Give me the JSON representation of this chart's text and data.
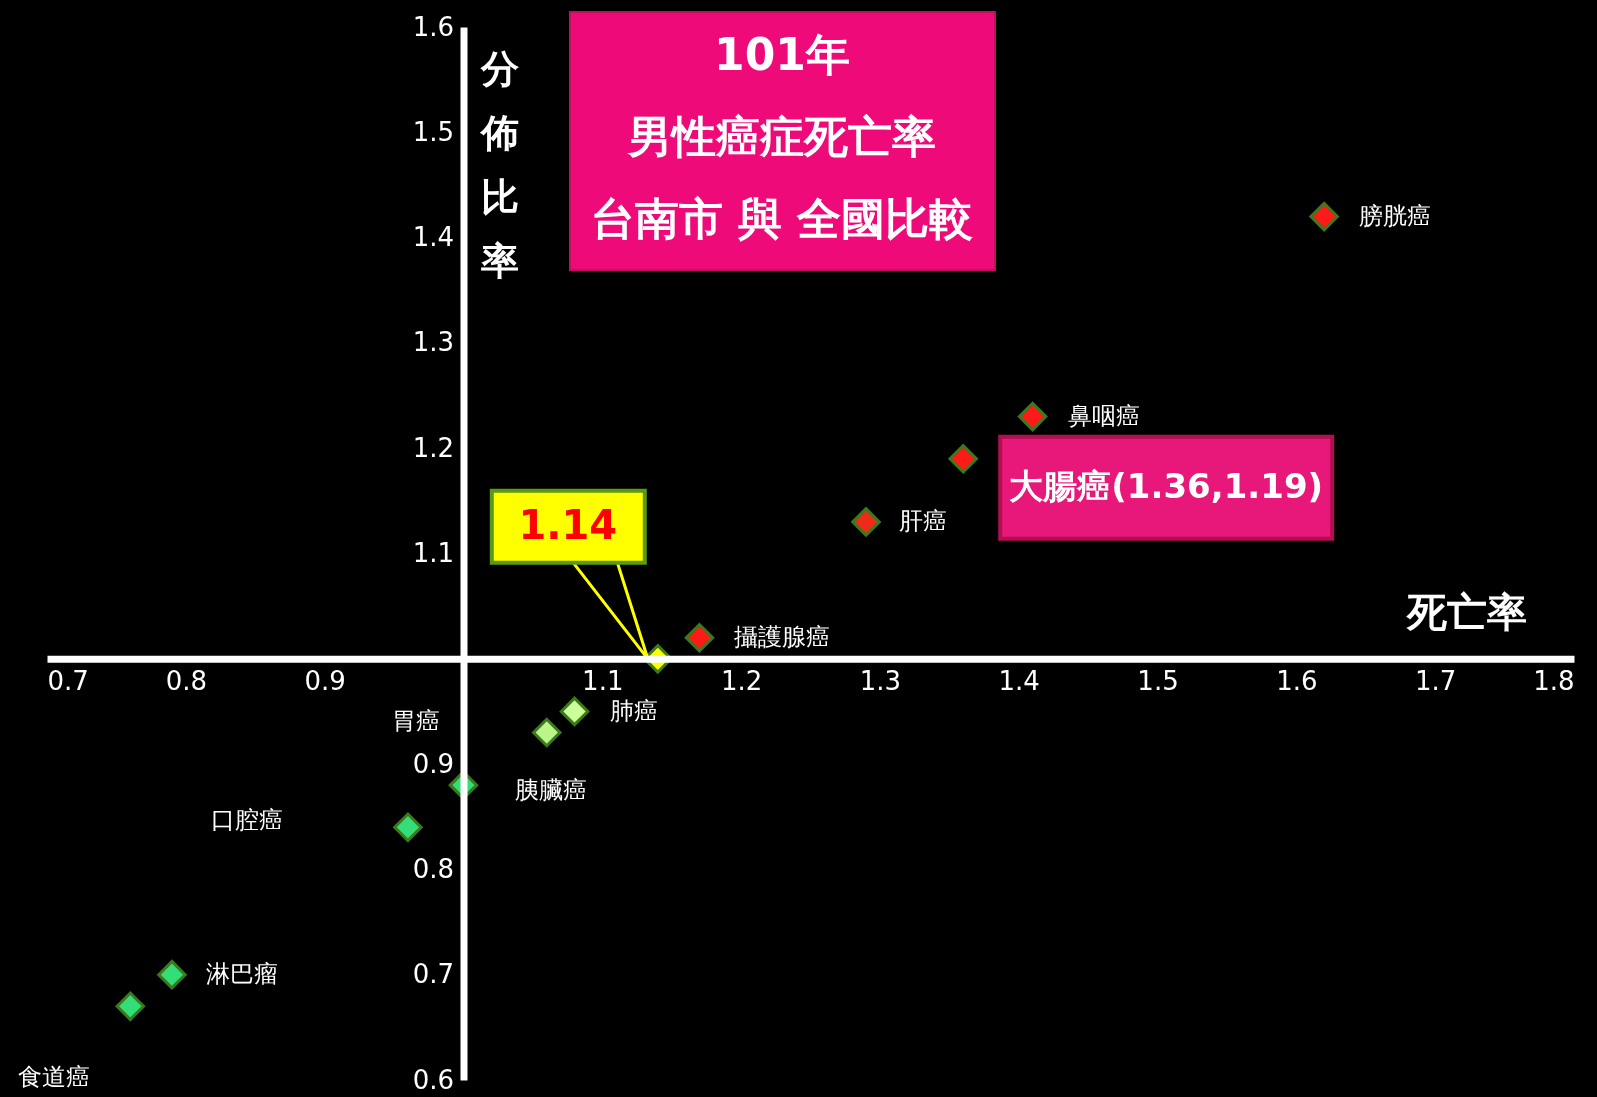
{
  "chart_data": {
    "type": "scatter",
    "title": "101年男性癌症死亡率台南市 與 全國比較",
    "xlabel": "死亡率",
    "ylabel": "分佈比率",
    "x": [
      1.62,
      1.41,
      1.36,
      1.29,
      1.17,
      1.14,
      1.08,
      1.06,
      1.0,
      0.96,
      0.79,
      0.76
    ],
    "values": [
      1.42,
      1.23,
      1.19,
      1.13,
      1.02,
      1.0,
      0.95,
      0.93,
      0.88,
      0.84,
      0.7,
      0.67
    ],
    "colors": [
      "#ff1a1a",
      "#ff1a1a",
      "#ff1a1a",
      "#ee2a1a",
      "#ff1a1a",
      "#ffff00",
      "#ccff99",
      "#bbf58a",
      "#33dd77",
      "#33dd77",
      "#33dd77",
      "#33dd77"
    ],
    "marker": "diamond",
    "xlim": [
      0.7,
      1.8
    ],
    "xticks": [
      0.7,
      0.8,
      0.9,
      1.1,
      1.2,
      1.3,
      1.4,
      1.5,
      1.6,
      1.7,
      1.8
    ],
    "ylim": [
      0.6,
      1.6
    ],
    "yticks": [
      0.6,
      0.7,
      0.8,
      0.9,
      1.1,
      1.2,
      1.3,
      1.4,
      1.5,
      1.6
    ],
    "grid": false,
    "annotations": [
      {
        "text": "膀胱癌",
        "x": 1.62,
        "y": 1.42
      },
      {
        "text": "鼻咽癌",
        "x": 1.41,
        "y": 1.23
      },
      {
        "text": "大腸癌(1.36,1.19)",
        "x": 1.36,
        "y": 1.19
      },
      {
        "text": "肝癌",
        "x": 1.29,
        "y": 1.13
      },
      {
        "text": "攝護腺癌",
        "x": 1.17,
        "y": 1.02
      },
      {
        "text": "1.14",
        "x": 1.14,
        "y": 1.0
      },
      {
        "text": "肺癌",
        "x": 1.08,
        "y": 0.95
      },
      "胃癌",
      {
        "text": "胰臟癌",
        "x": 1.0,
        "y": 0.88
      },
      "口腔癌",
      {
        "text": "淋巴瘤",
        "x": 0.79,
        "y": 0.7
      },
      {
        "text": "食道癌",
        "x": 0.76,
        "y": 0.67
      }
    ]
  }
}
